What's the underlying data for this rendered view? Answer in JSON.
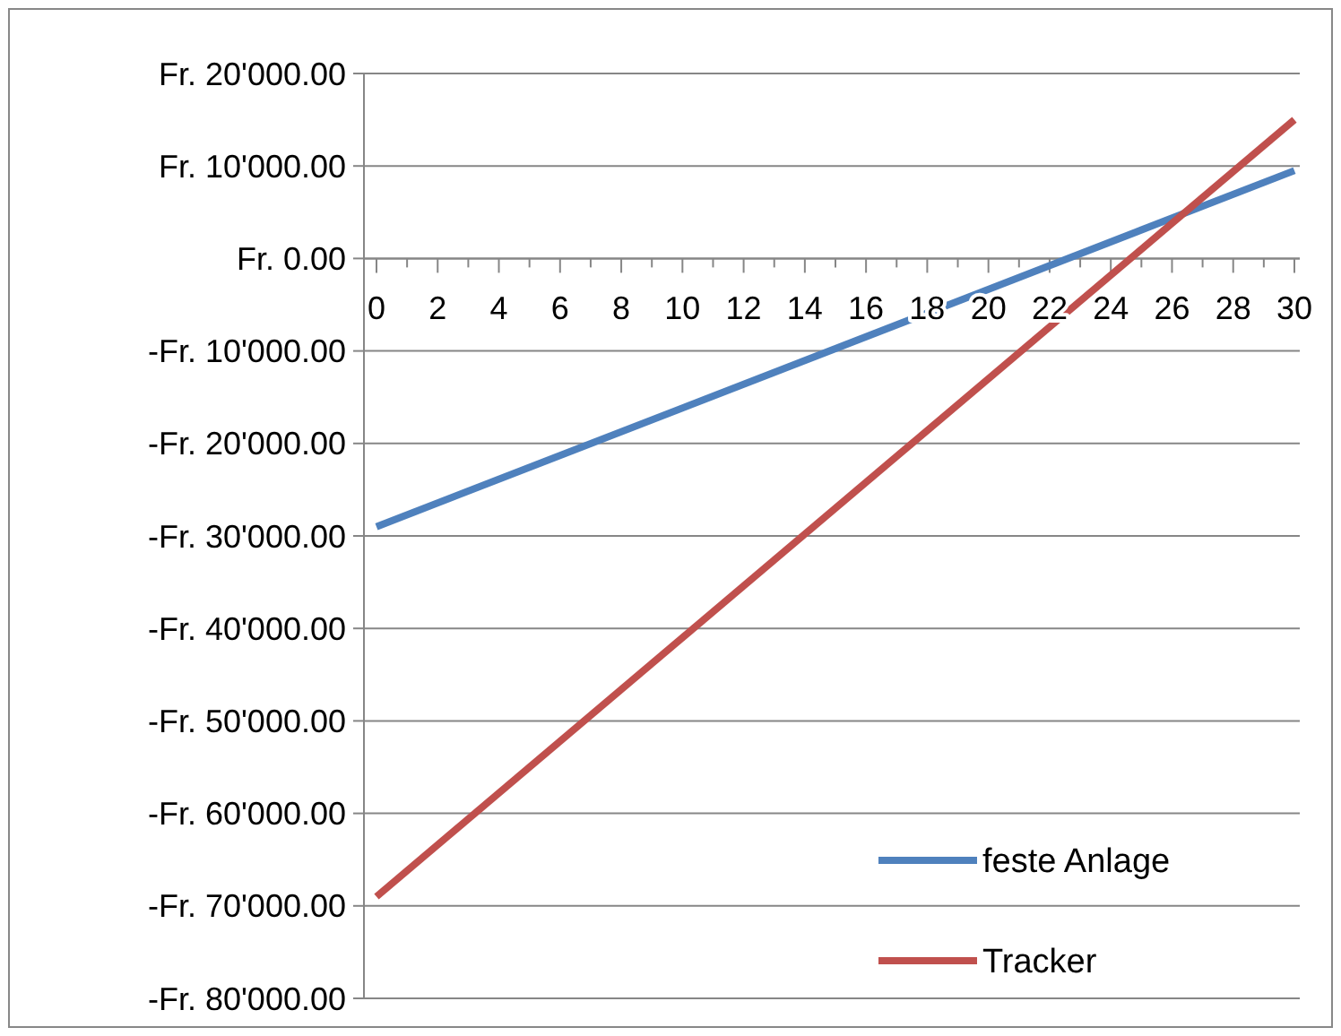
{
  "chart_data": {
    "type": "line",
    "x": [
      0,
      30
    ],
    "series": [
      {
        "name": "feste Anlage",
        "color": "#4f81bd",
        "values": [
          -29000,
          9500
        ]
      },
      {
        "name": "Tracker",
        "color": "#c0504d",
        "values": [
          -69000,
          15000
        ]
      }
    ],
    "xlim": [
      0,
      30
    ],
    "xticks": [
      0,
      {
        "value": 1,
        "label": null
      },
      2,
      {
        "value": 3,
        "label": null
      },
      4,
      {
        "value": 5,
        "label": null
      },
      6,
      {
        "value": 7,
        "label": null
      },
      8,
      {
        "value": 9,
        "label": null
      },
      10,
      {
        "value": 11,
        "label": null
      },
      12,
      {
        "value": 13,
        "label": null
      },
      14,
      {
        "value": 15,
        "label": null
      },
      16,
      {
        "value": 17,
        "label": null
      },
      18,
      {
        "value": 19,
        "label": null
      },
      20,
      {
        "value": 21,
        "label": null
      },
      22,
      {
        "value": 23,
        "label": null
      },
      24,
      {
        "value": 25,
        "label": null
      },
      26,
      {
        "value": 27,
        "label": null
      },
      28,
      {
        "value": 29,
        "label": null
      },
      30
    ],
    "ylim": [
      -80000,
      20000
    ],
    "yticks": [
      {
        "value": 20000,
        "label": "Fr. 20'000.00"
      },
      {
        "value": 10000,
        "label": "Fr. 10'000.00"
      },
      {
        "value": 0,
        "label": "Fr. 0.00"
      },
      {
        "value": -10000,
        "label": "-Fr. 10'000.00"
      },
      {
        "value": -20000,
        "label": "-Fr. 20'000.00"
      },
      {
        "value": -30000,
        "label": "-Fr. 30'000.00"
      },
      {
        "value": -40000,
        "label": "-Fr. 40'000.00"
      },
      {
        "value": -50000,
        "label": "-Fr. 50'000.00"
      },
      {
        "value": -60000,
        "label": "-Fr. 60'000.00"
      },
      {
        "value": -70000,
        "label": "-Fr. 70'000.00"
      },
      {
        "value": -80000,
        "label": "-Fr. 80'000.00"
      }
    ],
    "grid": "y",
    "legend": "bottom right",
    "marker": "none",
    "line_style": "solid"
  }
}
